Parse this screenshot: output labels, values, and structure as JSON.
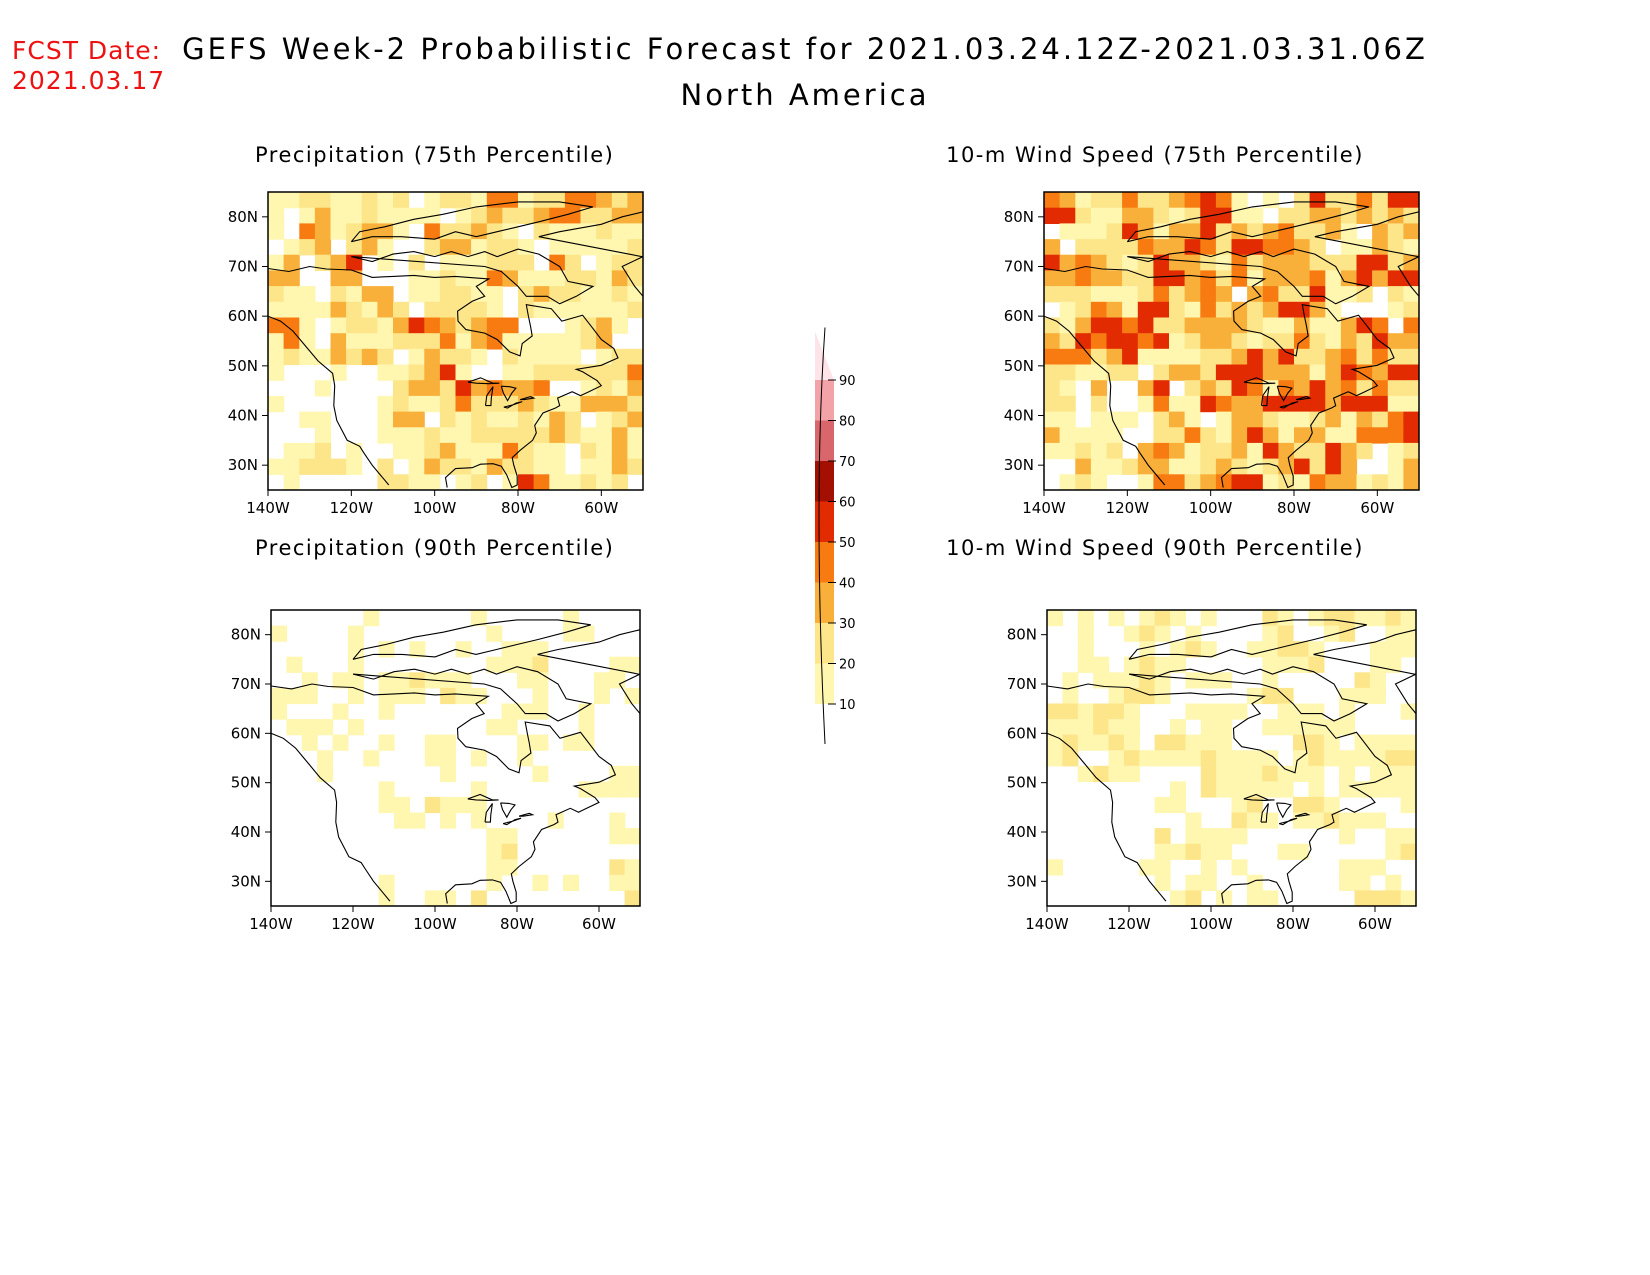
{
  "header": {
    "fcst_label": "FCST Date:",
    "fcst_date": "2021.03.17",
    "title": "GEFS Week-2 Probabilistic Forecast for 2021.03.24.12Z-2021.03.31.06Z",
    "subtitle": "North America"
  },
  "panels": [
    {
      "id": "p75",
      "title": "Precipitation (75th Percentile)",
      "intensity": 0.55
    },
    {
      "id": "w75",
      "title": "10-m Wind Speed (75th Percentile)",
      "intensity": 0.75
    },
    {
      "id": "p90",
      "title": "Precipitation (90th Percentile)",
      "intensity": 0.2
    },
    {
      "id": "w90",
      "title": "10-m Wind Speed (90th Percentile)",
      "intensity": 0.3
    }
  ],
  "axes": {
    "lat_labels": [
      "80N",
      "70N",
      "60N",
      "50N",
      "40N",
      "30N"
    ],
    "lon_labels": [
      "140W",
      "120W",
      "100W",
      "80W",
      "60W"
    ]
  },
  "colorbar": {
    "levels": [
      "10",
      "20",
      "30",
      "40",
      "50",
      "60",
      "70",
      "80",
      "90"
    ],
    "colors": [
      "#fff6b0",
      "#fde68a",
      "#f9b03a",
      "#f77b11",
      "#e22b00",
      "#a30f00",
      "#d9666a",
      "#f3a2a8",
      "#fde4e8"
    ]
  }
}
